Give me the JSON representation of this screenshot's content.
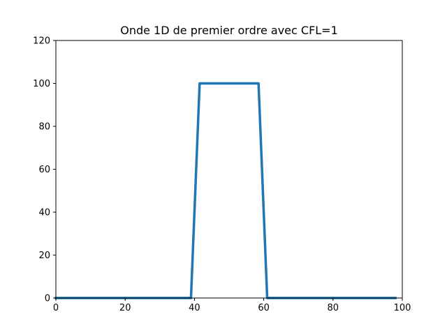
{
  "chart_data": {
    "type": "line",
    "title": "Onde 1D de premier ordre avec CFL=1",
    "xlabel": "",
    "ylabel": "",
    "xlim": [
      0,
      100
    ],
    "ylim": [
      0,
      120
    ],
    "xticks": [
      0,
      20,
      40,
      60,
      80,
      100
    ],
    "yticks": [
      0,
      20,
      40,
      60,
      80,
      100,
      120
    ],
    "grid": false,
    "series": [
      {
        "color": "#1f77b4",
        "x": [
          0,
          39,
          41.5,
          58.5,
          61,
          98
        ],
        "y": [
          0,
          0,
          100,
          100,
          0,
          0
        ]
      }
    ]
  }
}
